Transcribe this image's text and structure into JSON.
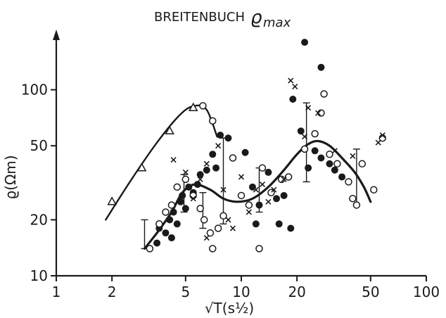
{
  "chart_data": {
    "type": "scatter",
    "title": "BREITENBUCH",
    "title_symbol": "ϱ",
    "title_subscript": "max",
    "ylabel": "ϱ(Ωm)",
    "xlabel": "√T(s½)",
    "x_scale": "log",
    "y_scale": "log",
    "xlim": [
      1,
      100
    ],
    "ylim": [
      10,
      200
    ],
    "x_ticks": [
      1,
      2,
      5,
      10,
      20,
      50,
      100
    ],
    "x_tick_labels": [
      "1",
      "2",
      "5",
      "10",
      "20",
      "50",
      "100"
    ],
    "y_ticks": [
      10,
      20,
      50,
      100
    ],
    "y_tick_labels": [
      "10",
      "20",
      "50",
      "100"
    ],
    "grid": false,
    "series": [
      {
        "marker": "open-triangle",
        "points": [
          [
            2.0,
            25
          ],
          [
            2.9,
            38
          ],
          [
            4.1,
            60
          ],
          [
            5.5,
            80
          ]
        ],
        "curve": [
          [
            1.85,
            20
          ],
          [
            2.5,
            32
          ],
          [
            3.5,
            52
          ],
          [
            4.7,
            74
          ],
          [
            5.6,
            82
          ],
          [
            6.5,
            78
          ],
          [
            7.4,
            56
          ]
        ]
      },
      {
        "marker": "filled-circle",
        "points": [
          [
            3.5,
            15
          ],
          [
            3.6,
            18
          ],
          [
            3.9,
            17
          ],
          [
            4.1,
            20
          ],
          [
            4.2,
            16
          ],
          [
            4.3,
            22
          ],
          [
            4.5,
            19
          ],
          [
            4.7,
            25
          ],
          [
            4.8,
            27
          ],
          [
            5.0,
            23
          ],
          [
            5.2,
            30
          ],
          [
            5.5,
            28
          ],
          [
            5.8,
            31
          ],
          [
            6.0,
            35
          ],
          [
            6.5,
            37
          ],
          [
            7.0,
            45
          ],
          [
            7.3,
            38
          ],
          [
            7.7,
            57
          ],
          [
            8.5,
            55
          ],
          [
            10.5,
            46
          ],
          [
            11.5,
            30
          ],
          [
            12.5,
            24
          ],
          [
            14.0,
            36
          ],
          [
            15.5,
            26
          ],
          [
            17.0,
            27
          ],
          [
            18.5,
            18
          ],
          [
            21.0,
            60
          ],
          [
            23.0,
            38
          ],
          [
            25.0,
            47
          ],
          [
            27.0,
            43
          ],
          [
            30.0,
            40
          ],
          [
            32.0,
            37
          ],
          [
            35.0,
            34
          ],
          [
            19.0,
            89
          ],
          [
            22.0,
            180
          ],
          [
            27.0,
            132
          ],
          [
            16.0,
            19
          ],
          [
            12.0,
            19
          ]
        ],
        "curve": [
          [
            3.0,
            14
          ],
          [
            3.5,
            17
          ],
          [
            4.2,
            22
          ],
          [
            4.8,
            28
          ],
          [
            5.6,
            31
          ],
          [
            6.8,
            29
          ],
          [
            8.0,
            26
          ],
          [
            9.5,
            25
          ],
          [
            11.5,
            26
          ],
          [
            14.0,
            30
          ],
          [
            17.0,
            37
          ],
          [
            20.0,
            45
          ],
          [
            23.0,
            51
          ],
          [
            26.0,
            53
          ],
          [
            30.0,
            50
          ],
          [
            35.0,
            43
          ],
          [
            41.0,
            36
          ],
          [
            46.0,
            30
          ],
          [
            50.0,
            25
          ]
        ]
      },
      {
        "marker": "open-circle",
        "points": [
          [
            3.2,
            14
          ],
          [
            3.6,
            19
          ],
          [
            3.9,
            22
          ],
          [
            4.2,
            24
          ],
          [
            4.5,
            30
          ],
          [
            5.0,
            33
          ],
          [
            5.5,
            27
          ],
          [
            6.0,
            23
          ],
          [
            6.3,
            20
          ],
          [
            6.8,
            17
          ],
          [
            7.0,
            14
          ],
          [
            7.5,
            18
          ],
          [
            8.0,
            21
          ],
          [
            9.0,
            43
          ],
          [
            10.0,
            27
          ],
          [
            11.0,
            24
          ],
          [
            12.5,
            14
          ],
          [
            13.0,
            38
          ],
          [
            14.5,
            28
          ],
          [
            16.5,
            33
          ],
          [
            18.0,
            34
          ],
          [
            22.0,
            48
          ],
          [
            25.0,
            58
          ],
          [
            27.0,
            75
          ],
          [
            28.0,
            95
          ],
          [
            30.0,
            45
          ],
          [
            33.0,
            40
          ],
          [
            38.0,
            32
          ],
          [
            40.0,
            26
          ],
          [
            42.0,
            24
          ],
          [
            45.0,
            40
          ],
          [
            52.0,
            29
          ],
          [
            58.0,
            55
          ],
          [
            6.2,
            82
          ],
          [
            7.0,
            68
          ]
        ],
        "curve": []
      },
      {
        "marker": "cross",
        "points": [
          [
            4.3,
            42
          ],
          [
            5.0,
            36
          ],
          [
            5.5,
            26
          ],
          [
            6.0,
            33
          ],
          [
            6.5,
            40
          ],
          [
            7.0,
            45
          ],
          [
            7.5,
            50
          ],
          [
            8.0,
            29
          ],
          [
            8.5,
            20
          ],
          [
            9.0,
            18
          ],
          [
            10.0,
            34
          ],
          [
            11.0,
            22
          ],
          [
            12.0,
            29
          ],
          [
            13.0,
            31
          ],
          [
            14.0,
            25
          ],
          [
            15.0,
            29
          ],
          [
            17.0,
            33
          ],
          [
            18.5,
            112
          ],
          [
            19.5,
            104
          ],
          [
            22.0,
            56
          ],
          [
            23.0,
            80
          ],
          [
            26.0,
            75
          ],
          [
            32.0,
            47
          ],
          [
            35.0,
            34
          ],
          [
            40.0,
            44
          ],
          [
            55.0,
            52
          ],
          [
            58.0,
            57
          ],
          [
            6.5,
            16
          ]
        ],
        "curve": []
      }
    ],
    "error_bars": [
      [
        3.0,
        14,
        20
      ],
      [
        4.9,
        22,
        35
      ],
      [
        6.2,
        18,
        28
      ],
      [
        8.0,
        19,
        55
      ],
      [
        12.5,
        22,
        38
      ],
      [
        22.5,
        32,
        85
      ],
      [
        42.0,
        24,
        48
      ]
    ]
  }
}
